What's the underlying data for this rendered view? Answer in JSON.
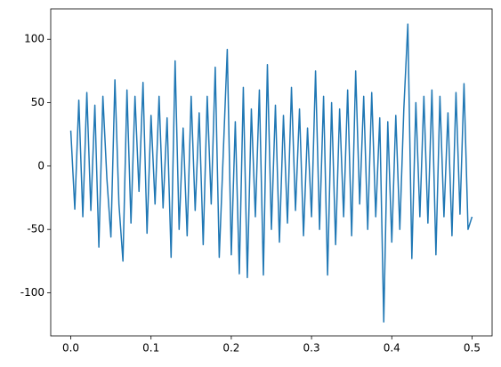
{
  "chart_data": {
    "type": "line",
    "x": [
      0,
      0.005,
      0.01,
      0.015,
      0.02,
      0.025,
      0.03,
      0.035,
      0.04,
      0.045,
      0.05,
      0.055,
      0.06,
      0.065,
      0.07,
      0.075,
      0.08,
      0.085,
      0.09,
      0.095,
      0.1,
      0.105,
      0.11,
      0.115,
      0.12,
      0.125,
      0.13,
      0.135,
      0.14,
      0.145,
      0.15,
      0.155,
      0.16,
      0.165,
      0.17,
      0.175,
      0.18,
      0.185,
      0.19,
      0.195,
      0.2,
      0.205,
      0.21,
      0.215,
      0.22,
      0.225,
      0.23,
      0.235,
      0.24,
      0.245,
      0.25,
      0.255,
      0.26,
      0.265,
      0.27,
      0.275,
      0.28,
      0.285,
      0.29,
      0.295,
      0.3,
      0.305,
      0.31,
      0.315,
      0.32,
      0.325,
      0.33,
      0.335,
      0.34,
      0.345,
      0.35,
      0.355,
      0.36,
      0.365,
      0.37,
      0.375,
      0.38,
      0.385,
      0.39,
      0.395,
      0.4,
      0.405,
      0.41,
      0.415,
      0.42,
      0.425,
      0.43,
      0.435,
      0.44,
      0.445,
      0.45,
      0.455,
      0.46,
      0.465,
      0.47,
      0.475,
      0.48,
      0.485,
      0.49,
      0.495,
      0.5
    ],
    "series": [
      {
        "color": "#1f77b4",
        "values": [
          28,
          -34,
          52,
          -40,
          58,
          -35,
          48,
          -64,
          55,
          -10,
          -56,
          68,
          -30,
          -75,
          60,
          -45,
          55,
          -20,
          66,
          -53,
          40,
          -30,
          55,
          -33,
          38,
          -72,
          83,
          -50,
          30,
          -55,
          55,
          -35,
          42,
          -62,
          55,
          -30,
          78,
          -72,
          10,
          92,
          -70,
          35,
          -85,
          62,
          -88,
          45,
          -40,
          60,
          -86,
          80,
          -50,
          48,
          -60,
          40,
          -45,
          62,
          -35,
          45,
          -55,
          30,
          -40,
          75,
          -50,
          55,
          -86,
          50,
          -62,
          45,
          -40,
          60,
          -55,
          75,
          -30,
          55,
          -50,
          58,
          -40,
          38,
          -123,
          35,
          -60,
          40,
          -50,
          45,
          112,
          -73,
          50,
          -40,
          55,
          -45,
          60,
          -70,
          55,
          -40,
          42,
          -55,
          58,
          -38,
          65,
          -50,
          -40
        ]
      }
    ],
    "xlim": [
      -0.025,
      0.525
    ],
    "ylim": [
      -134,
      124
    ],
    "xticks": [
      {
        "value": 0,
        "label": "0.0"
      },
      0.1,
      0.2,
      0.3,
      0.4,
      0.5
    ],
    "yticks": [
      -100,
      -50,
      0,
      50,
      100
    ]
  }
}
